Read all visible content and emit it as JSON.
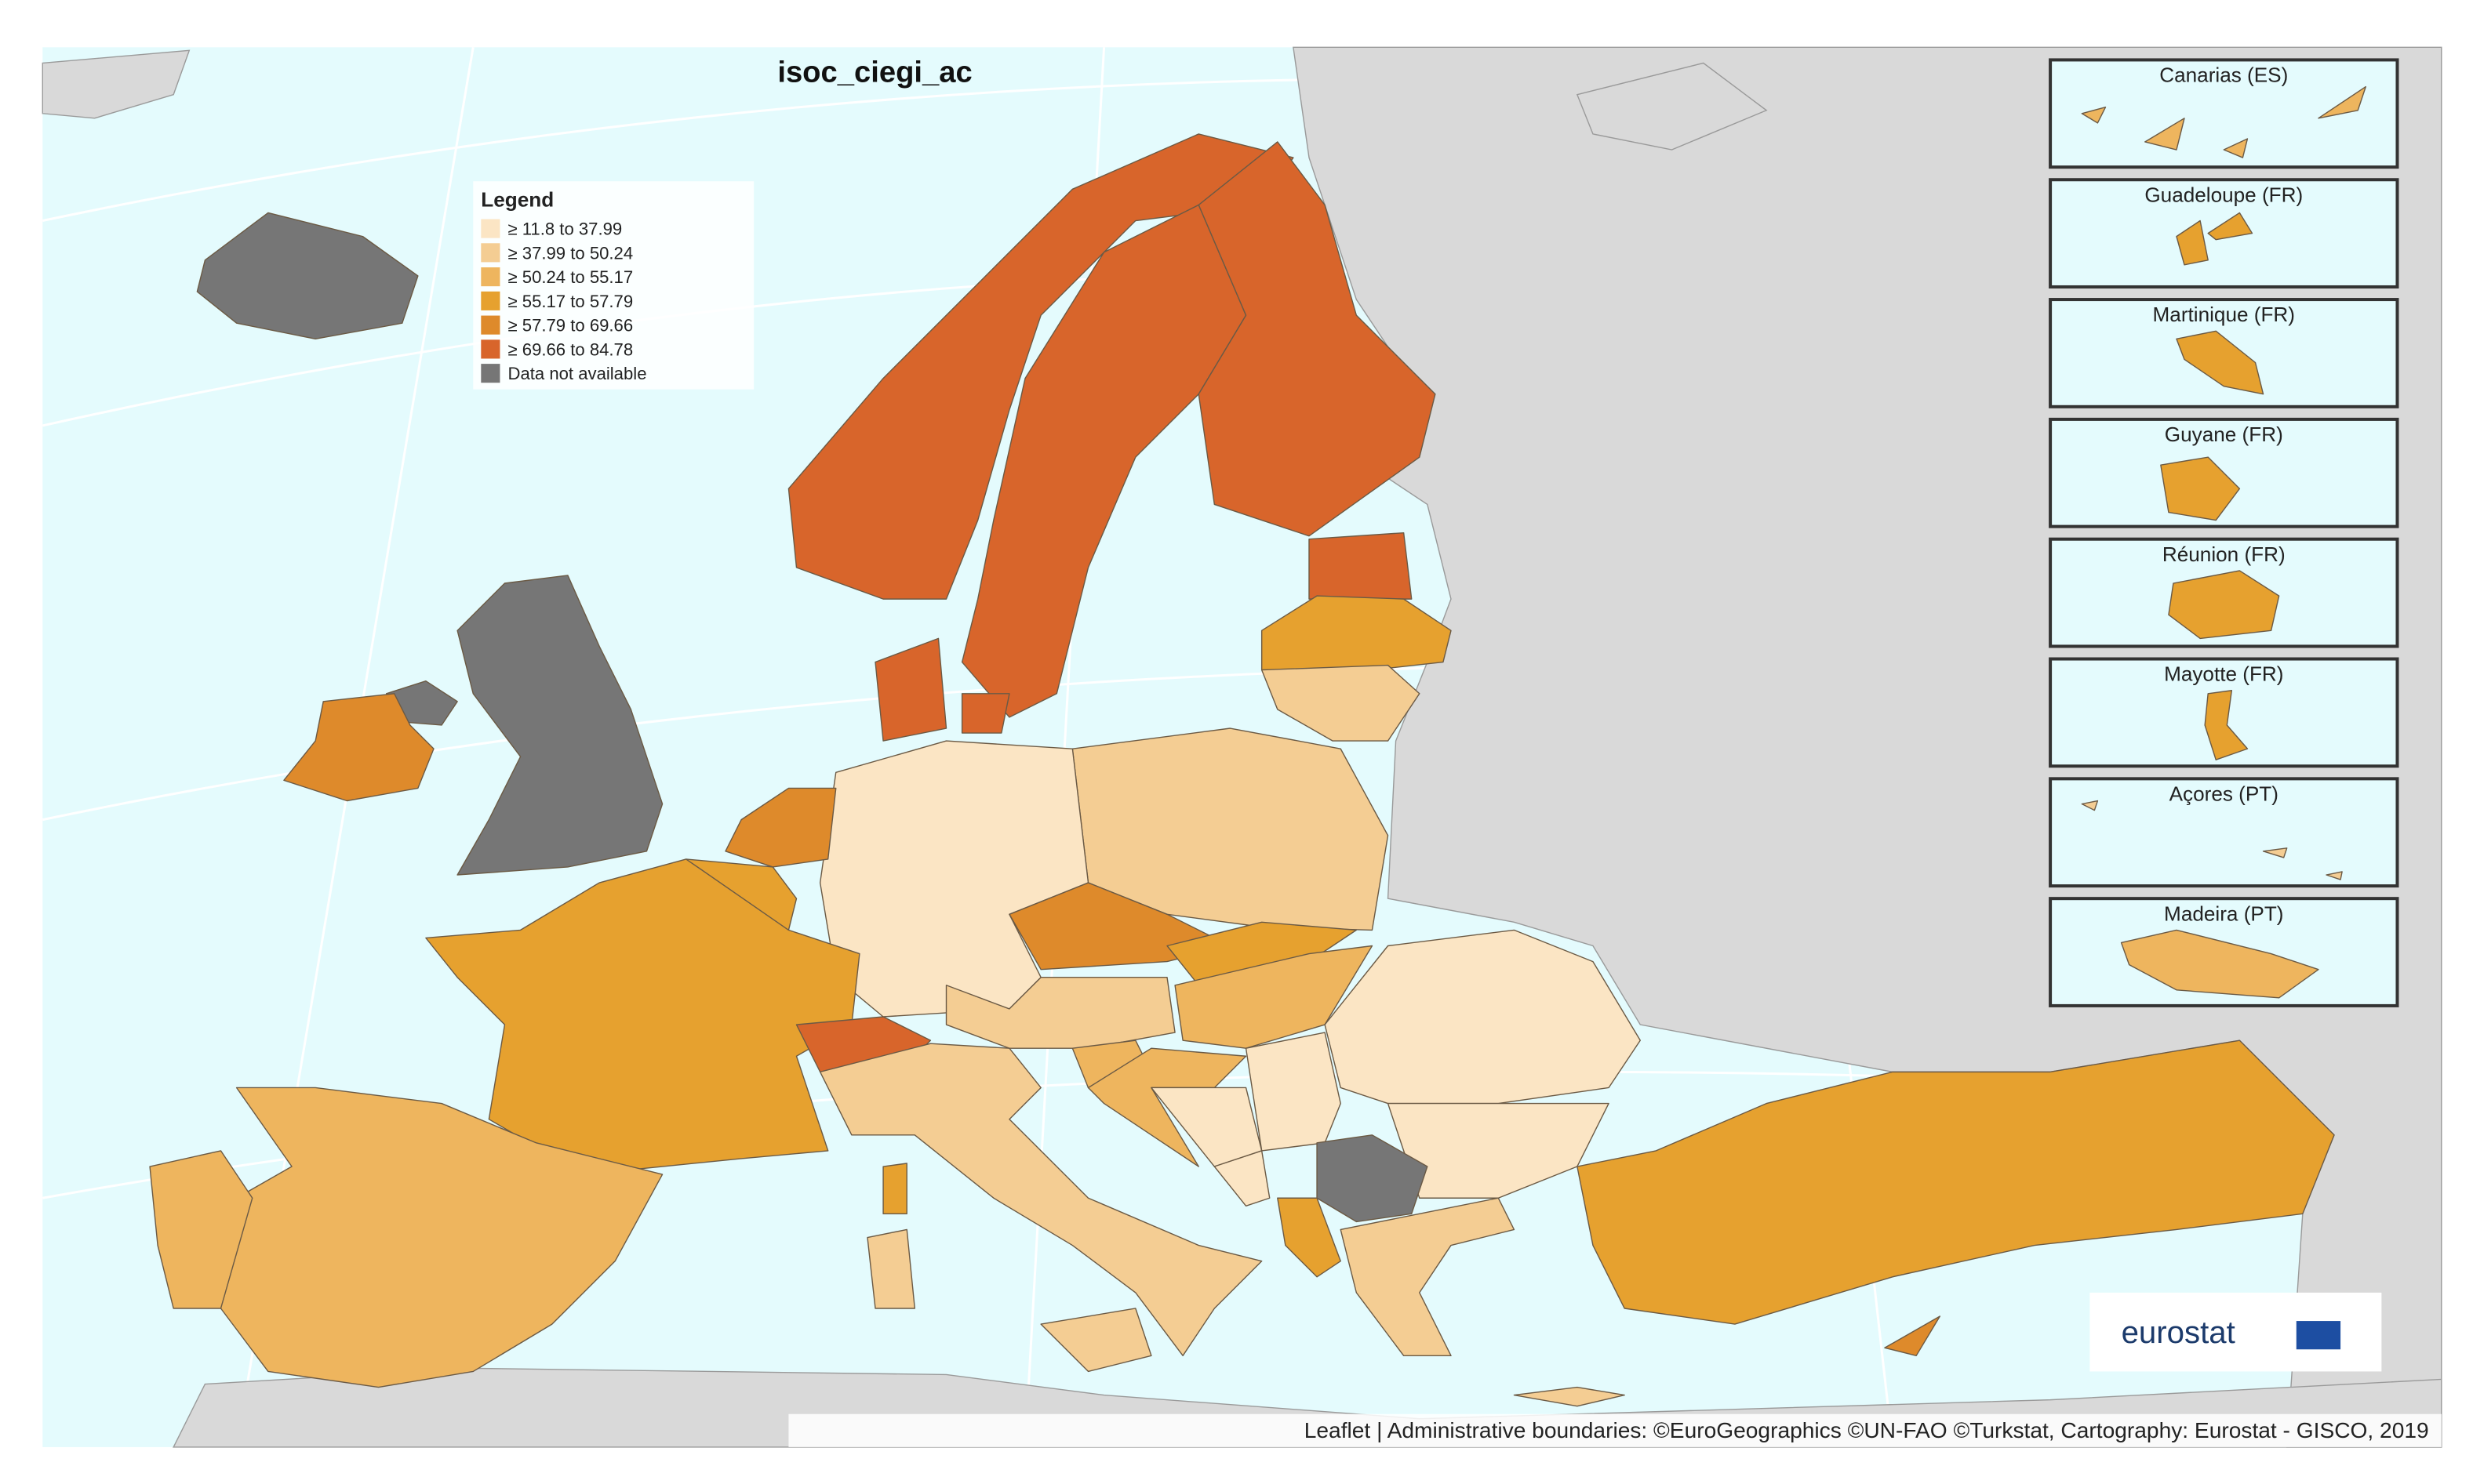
{
  "title": "isoc_ciegi_ac",
  "legend": {
    "title": "Legend",
    "items": [
      {
        "label": "≥ 11.8 to 37.99",
        "color": "#fbe5c4"
      },
      {
        "label": "≥ 37.99 to 50.24",
        "color": "#f4cd93"
      },
      {
        "label": "≥ 50.24 to 55.17",
        "color": "#eeb55e"
      },
      {
        "label": "≥ 55.17 to 57.79",
        "color": "#e6a12f"
      },
      {
        "label": "≥ 57.79 to 69.66",
        "color": "#de8a2b"
      },
      {
        "label": "≥ 69.66 to 84.78",
        "color": "#d8652b"
      },
      {
        "label": "Data not available",
        "color": "#767676"
      }
    ]
  },
  "insets": [
    "Canarias (ES)",
    "Guadeloupe (FR)",
    "Martinique (FR)",
    "Guyane (FR)",
    "Réunion (FR)",
    "Mayotte (FR)",
    "Açores (PT)",
    "Madeira (PT)"
  ],
  "logo": "eurostat",
  "attribution": "Leaflet | Administrative boundaries: ©EuroGeographics ©UN-FAO ©Turkstat, Cartography: Eurostat - GISCO, 2019"
}
